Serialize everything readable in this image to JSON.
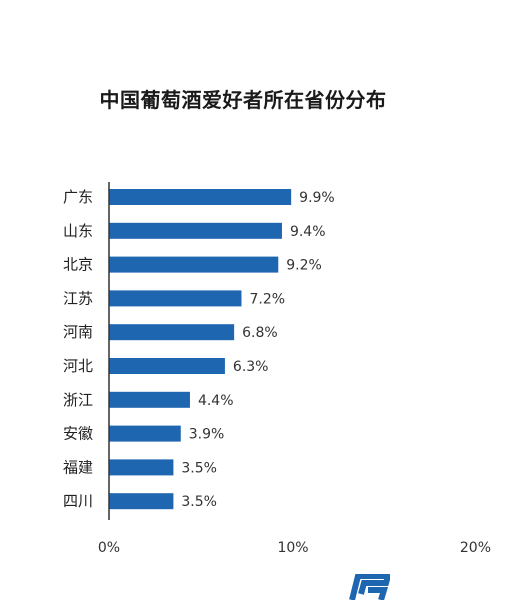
{
  "chart_data": {
    "type": "bar",
    "orientation": "horizontal",
    "title": "中国葡萄酒爱好者所在省份分布",
    "categories": [
      "广东",
      "山东",
      "北京",
      "江苏",
      "河南",
      "河北",
      "浙江",
      "安徽",
      "福建",
      "四川"
    ],
    "values": [
      9.9,
      9.4,
      9.2,
      7.2,
      6.8,
      6.3,
      4.4,
      3.9,
      3.5,
      3.5
    ],
    "value_labels": [
      "9.9%",
      "9.4%",
      "9.2%",
      "7.2%",
      "6.8%",
      "6.3%",
      "4.4%",
      "3.9%",
      "3.5%",
      "3.5%"
    ],
    "xlim": [
      0,
      20
    ],
    "x_ticks": [
      "0%",
      "10%",
      "20%"
    ],
    "grid": false,
    "bar_color": "#1f66b0"
  },
  "colors": {
    "axis": "#333333",
    "logo": "#1f66b0"
  }
}
